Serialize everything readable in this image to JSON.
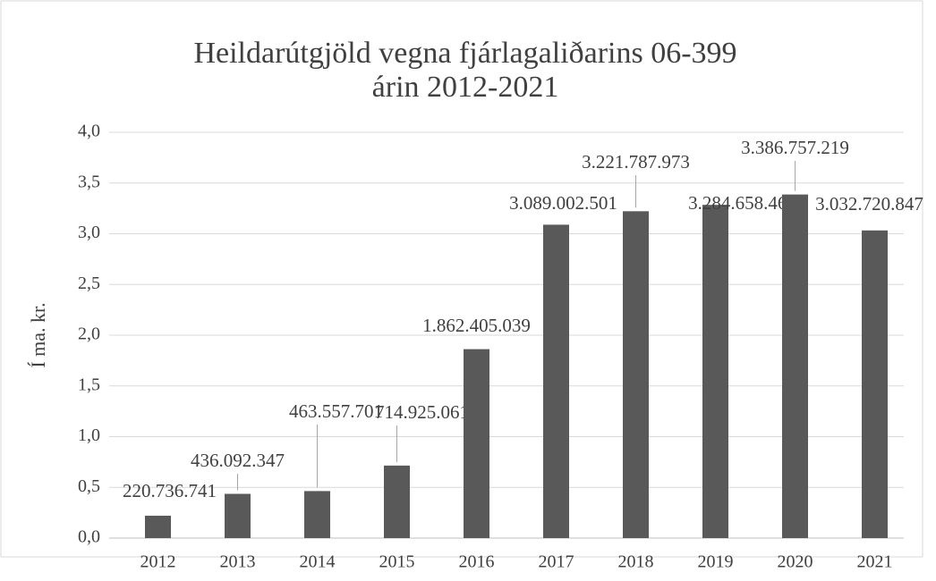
{
  "chart_data": {
    "type": "bar",
    "title": [
      "Heildarútgjöld vegna fjárlagaliðarins 06-399",
      "árin 2012-2021"
    ],
    "y_label": "Í ma. kr.",
    "categories": [
      "2012",
      "2013",
      "2014",
      "2015",
      "2016",
      "2017",
      "2018",
      "2019",
      "2020",
      "2021"
    ],
    "values": [
      0.220736741,
      0.436092347,
      0.463557701,
      0.714925061,
      1.862405039,
      3.089002501,
      3.221787973,
      3.284658468,
      3.386757219,
      3.032720847
    ],
    "value_labels": [
      "220.736.741",
      "436.092.347",
      "463.557.701",
      "714.925.061",
      "1.862.405.039",
      "3.089.002.501",
      "3.221.787.973",
      "3.284.658.468",
      "3.386.757.219",
      "3.032.720.847"
    ],
    "color": "#595959",
    "ylim": [
      0,
      4
    ],
    "yticks": [
      {
        "value": 0,
        "label": "0,0"
      },
      {
        "value": 0.5,
        "label": "0,5"
      },
      {
        "value": 1,
        "label": "1,0"
      },
      {
        "value": 1.5,
        "label": "1,5"
      },
      {
        "value": 2,
        "label": "2,0"
      },
      {
        "value": 2.5,
        "label": "2,5"
      },
      {
        "value": 3,
        "label": "3,0"
      },
      {
        "value": 3.5,
        "label": "3,5"
      },
      {
        "value": 4,
        "label": "4,0"
      }
    ],
    "grid": true
  }
}
